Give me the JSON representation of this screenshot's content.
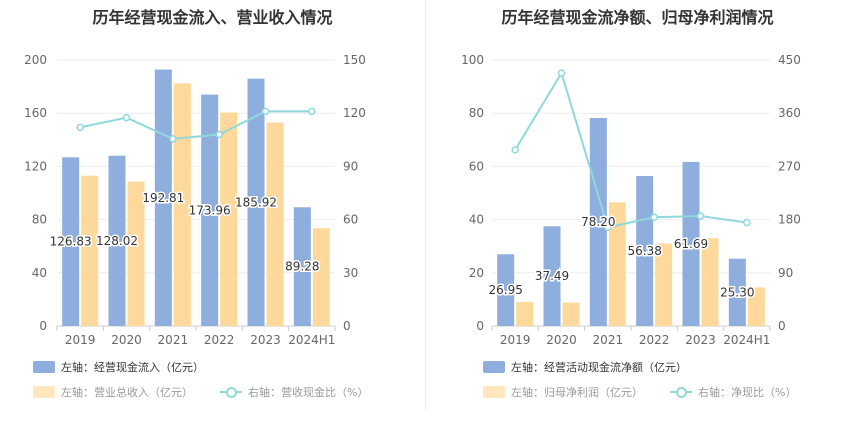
{
  "chart_data": [
    {
      "type": "bar",
      "title": "历年经营现金流入、营业收入情况",
      "categories": [
        "2019",
        "2020",
        "2021",
        "2022",
        "2023",
        "2024H1"
      ],
      "left_axis": {
        "min": 0,
        "max": 200,
        "ticks": [
          "0",
          "40",
          "80",
          "120",
          "160",
          "200"
        ]
      },
      "right_axis": {
        "min": 0,
        "max": 150,
        "ticks": [
          "0",
          "30",
          "60",
          "90",
          "120",
          "150"
        ]
      },
      "series": [
        {
          "name": "左轴：经营现金流入（亿元）",
          "axis": "left",
          "kind": "bar",
          "color": "#8eaede",
          "values": [
            126.83,
            128.02,
            192.81,
            173.96,
            185.92,
            89.28
          ],
          "labels": [
            "126.83",
            "128.02",
            "192.81",
            "173.96",
            "185.92",
            "89.28"
          ]
        },
        {
          "name": "左轴：营业总收入（亿元）",
          "axis": "left",
          "kind": "bar",
          "color": "#ffd99b",
          "values": [
            113,
            108.5,
            182.5,
            160.5,
            153,
            73.5
          ]
        },
        {
          "name": "右轴：营收现金比（%）",
          "axis": "right",
          "kind": "line",
          "color": "#8fd8dc",
          "values": [
            112,
            117.5,
            105.5,
            108,
            121,
            121
          ]
        }
      ],
      "legend": "bottom"
    },
    {
      "type": "bar",
      "title": "历年经营现金流净额、归母净利润情况",
      "categories": [
        "2019",
        "2020",
        "2021",
        "2022",
        "2023",
        "2024H1"
      ],
      "left_axis": {
        "min": 0,
        "max": 100,
        "ticks": [
          "0",
          "20",
          "40",
          "60",
          "80",
          "100"
        ]
      },
      "right_axis": {
        "min": 0,
        "max": 450,
        "ticks": [
          "0",
          "90",
          "180",
          "270",
          "360",
          "450"
        ]
      },
      "series": [
        {
          "name": "左轴：经营活动现金流净额（亿元）",
          "axis": "left",
          "kind": "bar",
          "color": "#8eaede",
          "values": [
            26.95,
            37.49,
            78.2,
            56.38,
            61.69,
            25.3
          ],
          "labels": [
            "26.95",
            "37.49",
            "78.20",
            "56.38",
            "61.69",
            "25.30"
          ]
        },
        {
          "name": "左轴：归母净利润（亿元）",
          "axis": "left",
          "kind": "bar",
          "color": "#ffd99b",
          "values": [
            9,
            8.8,
            46.5,
            31,
            33,
            14.5
          ]
        },
        {
          "name": "右轴：净现比（%）",
          "axis": "right",
          "kind": "line",
          "color": "#8fd8dc",
          "values": [
            298,
            428,
            167,
            184,
            186,
            175
          ]
        }
      ],
      "legend": "bottom"
    }
  ]
}
